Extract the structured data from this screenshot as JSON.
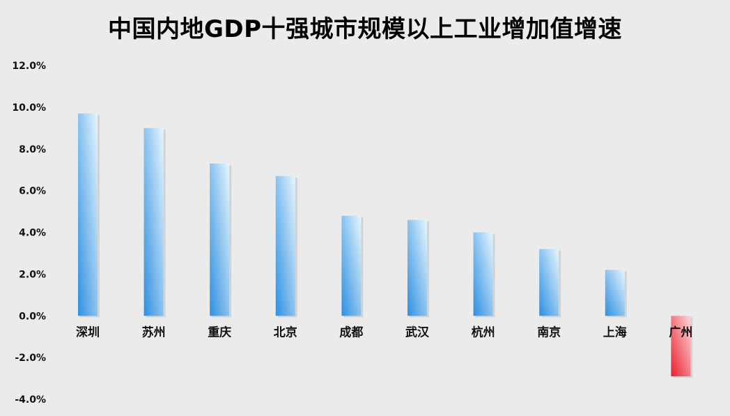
{
  "chart_data": {
    "type": "bar",
    "title": "中国内地GDP十强城市规模以上工业增加值增速",
    "categories": [
      "深圳",
      "苏州",
      "重庆",
      "北京",
      "成都",
      "武汉",
      "杭州",
      "南京",
      "上海",
      "广州"
    ],
    "values": [
      9.7,
      9.0,
      7.3,
      6.7,
      4.8,
      4.6,
      4.0,
      3.2,
      2.2,
      -2.9
    ],
    "ylim": [
      -4.0,
      12.0
    ],
    "yticks": [
      "12.0%",
      "10.0%",
      "8.0%",
      "6.0%",
      "4.0%",
      "2.0%",
      "0.0%",
      "-2.0%",
      "-4.0%"
    ],
    "xlabel": "",
    "ylabel": "",
    "grid": false,
    "colors": {
      "positive_dark": "#2f8fe0",
      "positive_light": "#e6f6fd",
      "negative_dark": "#e8212e",
      "negative_light": "#fbd8da"
    }
  }
}
